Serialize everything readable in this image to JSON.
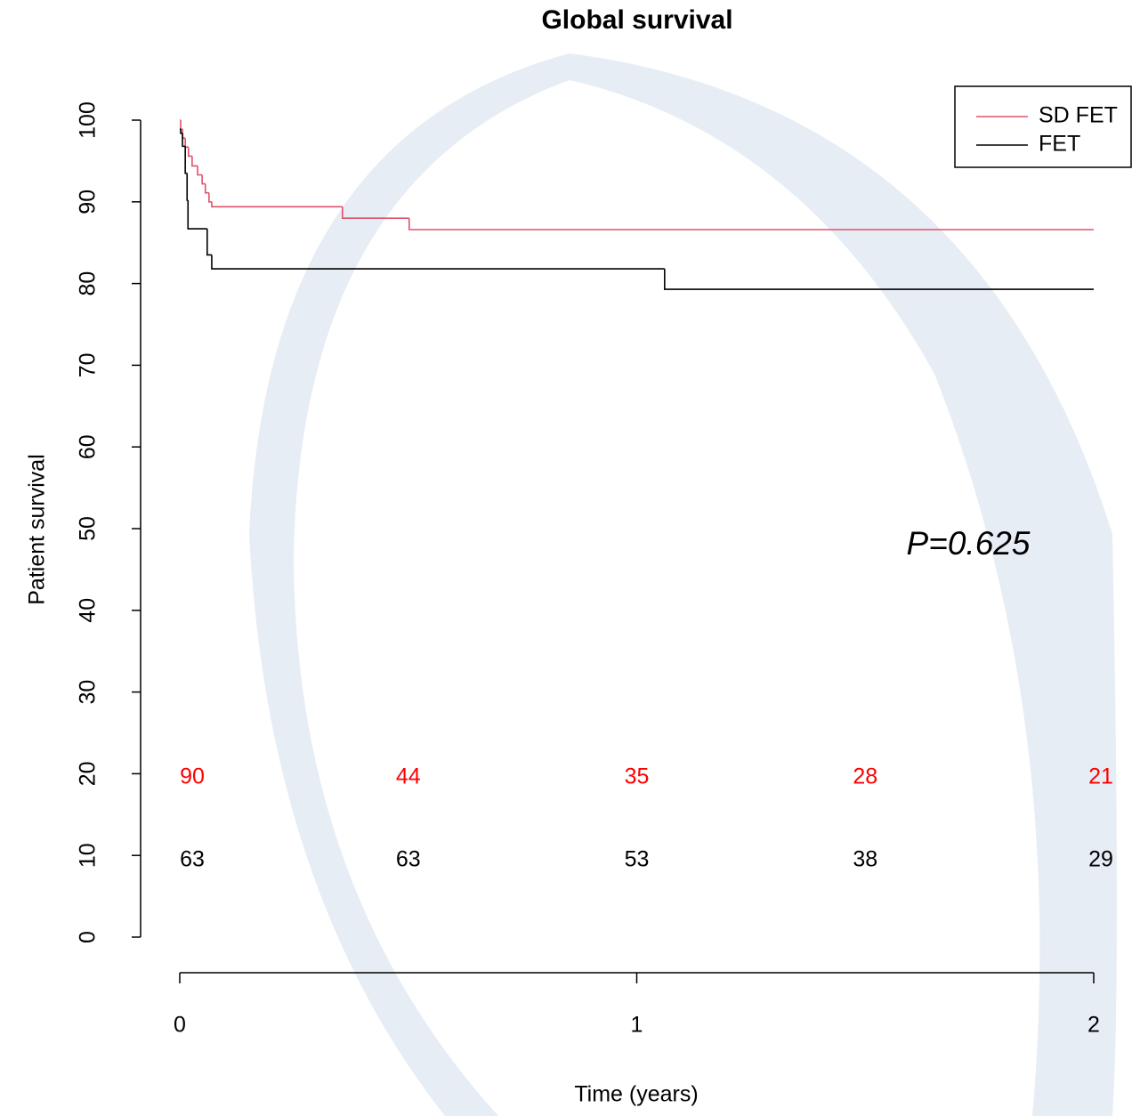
{
  "chart_data": {
    "type": "survival",
    "title": "Global survival",
    "x_label": "Time (years)",
    "y_label": "Patient survival",
    "xlim": [
      0,
      2
    ],
    "xticks": [
      0,
      1,
      2
    ],
    "ylim": [
      0,
      100
    ],
    "yticks": [
      0,
      10,
      20,
      30,
      40,
      50,
      60,
      70,
      80,
      90,
      100
    ],
    "legend": "top-right",
    "annotation": "P=0.625",
    "series": [
      {
        "name": "SD FET",
        "color": "#df536b",
        "x": [
          0,
          0.002,
          0.006,
          0.012,
          0.019,
          0.027,
          0.039,
          0.049,
          0.056,
          0.064,
          0.07,
          0.356,
          0.502,
          2
        ],
        "values": [
          100,
          98.9,
          97.8,
          96.7,
          95.6,
          94.4,
          93.3,
          92.2,
          91.1,
          90.0,
          89.4,
          88.0,
          86.6,
          86.6
        ],
        "at_risk": [
          90,
          44,
          35,
          28,
          21
        ],
        "at_risk_color": "#ff0000"
      },
      {
        "name": "FET",
        "color": "#000000",
        "x": [
          0,
          0.002,
          0.006,
          0.012,
          0.016,
          0.018,
          0.06,
          0.07,
          1.061,
          2
        ],
        "values": [
          98.9,
          98.4,
          96.8,
          93.5,
          90.2,
          86.7,
          83.5,
          81.8,
          79.3,
          79.3
        ],
        "at_risk": [
          63,
          63,
          53,
          38,
          29
        ],
        "at_risk_color": "#000000"
      }
    ]
  }
}
